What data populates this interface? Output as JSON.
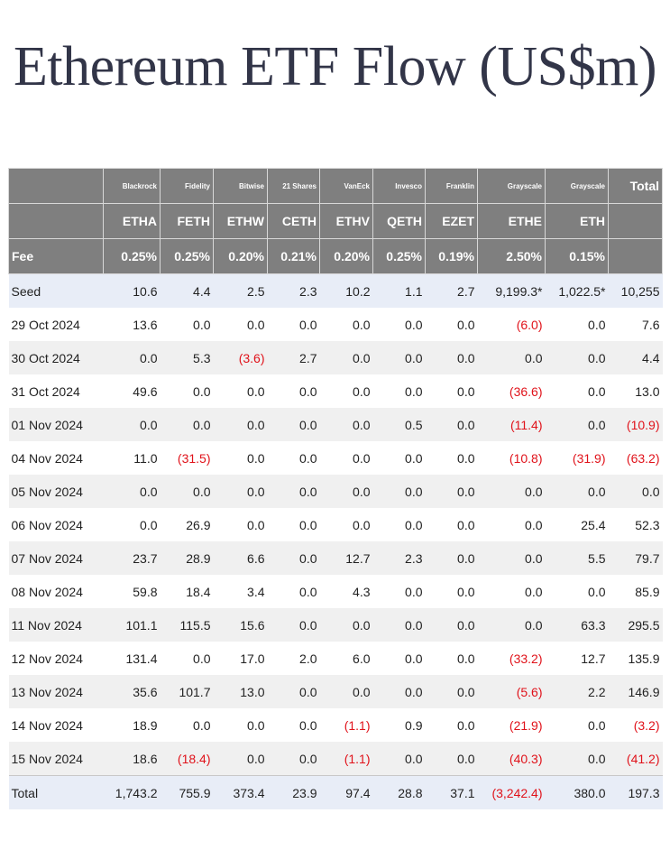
{
  "title": "Ethereum ETF Flow (US$m)",
  "colors": {
    "header_bg": "#7f7f7f",
    "header_text": "#ffffff",
    "negative": "#e0121a",
    "seed_total_row_bg": "#e8edf7",
    "odd_row_bg": "#f0f0f0",
    "title_color": "#323548"
  },
  "table": {
    "issuers": [
      "",
      "Blackrock",
      "Fidelity",
      "Bitwise",
      "21 Shares",
      "VanEck",
      "Invesco",
      "Franklin",
      "Grayscale",
      "Grayscale",
      "Total"
    ],
    "tickers": [
      "",
      "ETHA",
      "FETH",
      "ETHW",
      "CETH",
      "ETHV",
      "QETH",
      "EZET",
      "ETHE",
      "ETH",
      ""
    ],
    "fees": [
      "Fee",
      "0.25%",
      "0.25%",
      "0.20%",
      "0.21%",
      "0.20%",
      "0.25%",
      "0.19%",
      "2.50%",
      "0.15%",
      ""
    ],
    "rows": [
      {
        "label": "Seed",
        "values": [
          "10.6",
          "4.4",
          "2.5",
          "2.3",
          "10.2",
          "1.1",
          "2.7",
          "9,199.3*",
          "1,022.5*",
          "10,255"
        ]
      },
      {
        "label": "29 Oct 2024",
        "values": [
          "13.6",
          "0.0",
          "0.0",
          "0.0",
          "0.0",
          "0.0",
          "0.0",
          "(6.0)",
          "0.0",
          "7.6"
        ]
      },
      {
        "label": "30 Oct 2024",
        "values": [
          "0.0",
          "5.3",
          "(3.6)",
          "2.7",
          "0.0",
          "0.0",
          "0.0",
          "0.0",
          "0.0",
          "4.4"
        ]
      },
      {
        "label": "31 Oct 2024",
        "values": [
          "49.6",
          "0.0",
          "0.0",
          "0.0",
          "0.0",
          "0.0",
          "0.0",
          "(36.6)",
          "0.0",
          "13.0"
        ]
      },
      {
        "label": "01 Nov 2024",
        "values": [
          "0.0",
          "0.0",
          "0.0",
          "0.0",
          "0.0",
          "0.5",
          "0.0",
          "(11.4)",
          "0.0",
          "(10.9)"
        ]
      },
      {
        "label": "04 Nov 2024",
        "values": [
          "11.0",
          "(31.5)",
          "0.0",
          "0.0",
          "0.0",
          "0.0",
          "0.0",
          "(10.8)",
          "(31.9)",
          "(63.2)"
        ]
      },
      {
        "label": "05 Nov 2024",
        "values": [
          "0.0",
          "0.0",
          "0.0",
          "0.0",
          "0.0",
          "0.0",
          "0.0",
          "0.0",
          "0.0",
          "0.0"
        ]
      },
      {
        "label": "06 Nov 2024",
        "values": [
          "0.0",
          "26.9",
          "0.0",
          "0.0",
          "0.0",
          "0.0",
          "0.0",
          "0.0",
          "25.4",
          "52.3"
        ]
      },
      {
        "label": "07 Nov 2024",
        "values": [
          "23.7",
          "28.9",
          "6.6",
          "0.0",
          "12.7",
          "2.3",
          "0.0",
          "0.0",
          "5.5",
          "79.7"
        ]
      },
      {
        "label": "08 Nov 2024",
        "values": [
          "59.8",
          "18.4",
          "3.4",
          "0.0",
          "4.3",
          "0.0",
          "0.0",
          "0.0",
          "0.0",
          "85.9"
        ]
      },
      {
        "label": "11 Nov 2024",
        "values": [
          "101.1",
          "115.5",
          "15.6",
          "0.0",
          "0.0",
          "0.0",
          "0.0",
          "0.0",
          "63.3",
          "295.5"
        ]
      },
      {
        "label": "12 Nov 2024",
        "values": [
          "131.4",
          "0.0",
          "17.0",
          "2.0",
          "6.0",
          "0.0",
          "0.0",
          "(33.2)",
          "12.7",
          "135.9"
        ]
      },
      {
        "label": "13 Nov 2024",
        "values": [
          "35.6",
          "101.7",
          "13.0",
          "0.0",
          "0.0",
          "0.0",
          "0.0",
          "(5.6)",
          "2.2",
          "146.9"
        ]
      },
      {
        "label": "14 Nov 2024",
        "values": [
          "18.9",
          "0.0",
          "0.0",
          "0.0",
          "(1.1)",
          "0.9",
          "0.0",
          "(21.9)",
          "0.0",
          "(3.2)"
        ]
      },
      {
        "label": "15 Nov 2024",
        "values": [
          "18.6",
          "(18.4)",
          "0.0",
          "0.0",
          "(1.1)",
          "0.0",
          "0.0",
          "(40.3)",
          "0.0",
          "(41.2)"
        ]
      },
      {
        "label": "Total",
        "values": [
          "1,743.2",
          "755.9",
          "373.4",
          "23.9",
          "97.4",
          "28.8",
          "37.1",
          "(3,242.4)",
          "380.0",
          "197.3"
        ]
      }
    ]
  }
}
